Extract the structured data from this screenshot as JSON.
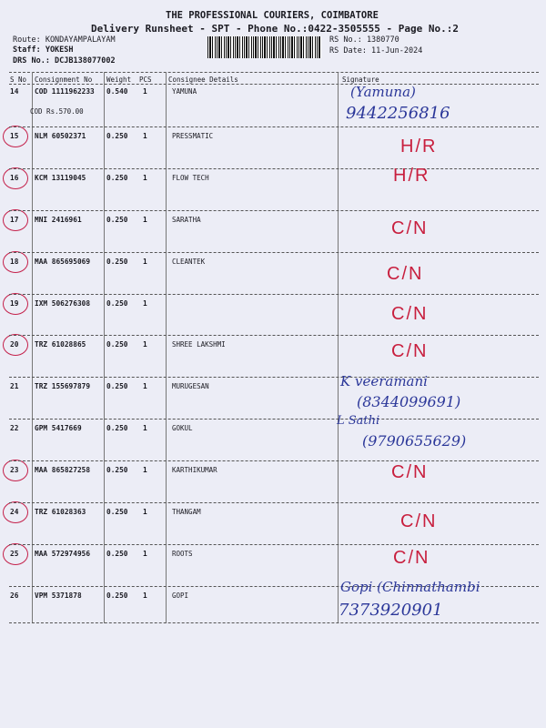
{
  "header": {
    "company": "THE PROFESSIONAL COURIERS, COIMBATORE",
    "subtitle": "Delivery Runsheet - SPT - Phone No.:0422-3505555 - Page No.:2",
    "route": "Route: KONDAYAMPALAYAM",
    "staff": "Staff: YOKESH",
    "drs_no": "DRS No.: DCJB138077002",
    "rs_no": "RS No.: 1380770",
    "rs_date": "RS Date: 11-Jun-2024"
  },
  "columns": [
    "S No",
    "Consignment No",
    "Weight",
    "PCS",
    "Consignee Details",
    "Signature"
  ],
  "rows": [
    {
      "sno": "14",
      "consignment": "COD 1111962233",
      "weight": "0.540",
      "pcs": "1",
      "consignee": "YAMUNA",
      "note": "COD Rs.570.00",
      "circled": false
    },
    {
      "sno": "15",
      "consignment": "NLM 60502371",
      "weight": "0.250",
      "pcs": "1",
      "consignee": "PRESSMATIC",
      "circled": true
    },
    {
      "sno": "16",
      "consignment": "KCM 13119045",
      "weight": "0.250",
      "pcs": "1",
      "consignee": "FLOW TECH",
      "circled": true
    },
    {
      "sno": "17",
      "consignment": "MNI 2416961",
      "weight": "0.250",
      "pcs": "1",
      "consignee": "SARATHA",
      "circled": true
    },
    {
      "sno": "18",
      "consignment": "MAA 865695069",
      "weight": "0.250",
      "pcs": "1",
      "consignee": "CLEANTEK",
      "circled": true
    },
    {
      "sno": "19",
      "consignment": "IXM 506276308",
      "weight": "0.250",
      "pcs": "1",
      "consignee": "",
      "circled": true
    },
    {
      "sno": "20",
      "consignment": "TRZ 61028865",
      "weight": "0.250",
      "pcs": "1",
      "consignee": "SHREE LAKSHMI",
      "circled": true
    },
    {
      "sno": "21",
      "consignment": "TRZ 155697879",
      "weight": "0.250",
      "pcs": "1",
      "consignee": "MURUGESAN",
      "circled": false
    },
    {
      "sno": "22",
      "consignment": "GPM 5417669",
      "weight": "0.250",
      "pcs": "1",
      "consignee": "GOKUL",
      "circled": false
    },
    {
      "sno": "23",
      "consignment": "MAA 865827258",
      "weight": "0.250",
      "pcs": "1",
      "consignee": "KARTHIKUMAR",
      "circled": true
    },
    {
      "sno": "24",
      "consignment": "TRZ 61028363",
      "weight": "0.250",
      "pcs": "1",
      "consignee": "THANGAM",
      "circled": true
    },
    {
      "sno": "25",
      "consignment": "MAA 572974956",
      "weight": "0.250",
      "pcs": "1",
      "consignee": "ROOTS",
      "circled": true
    },
    {
      "sno": "26",
      "consignment": "VPM 5371878",
      "weight": "0.250",
      "pcs": "1",
      "consignee": "GOPI",
      "circled": false
    }
  ],
  "handwriting": {
    "yamuna_name": "(Yamuna)",
    "yamuna_phone": "9442256816",
    "hr_1": "H/R",
    "hr_2": "H/R",
    "cn_17": "C/N",
    "cn_18": "C/N",
    "cn_19": "C/N",
    "cn_20": "C/N",
    "murugesan_name": "K veeramani",
    "murugesan_phone": "(8344099691)",
    "gokul_name": "L Sathi",
    "gokul_phone": "(9790655629)",
    "cn_23": "C/N",
    "cn_24": "C/N",
    "cn_25": "C/N",
    "gopi_name": "Gopi (Chinnathambi",
    "gopi_phone": "7373920901"
  },
  "colors": {
    "ink_blue": "#2b3799",
    "ink_red": "#c81f3e",
    "paper": "#ecedf6"
  }
}
